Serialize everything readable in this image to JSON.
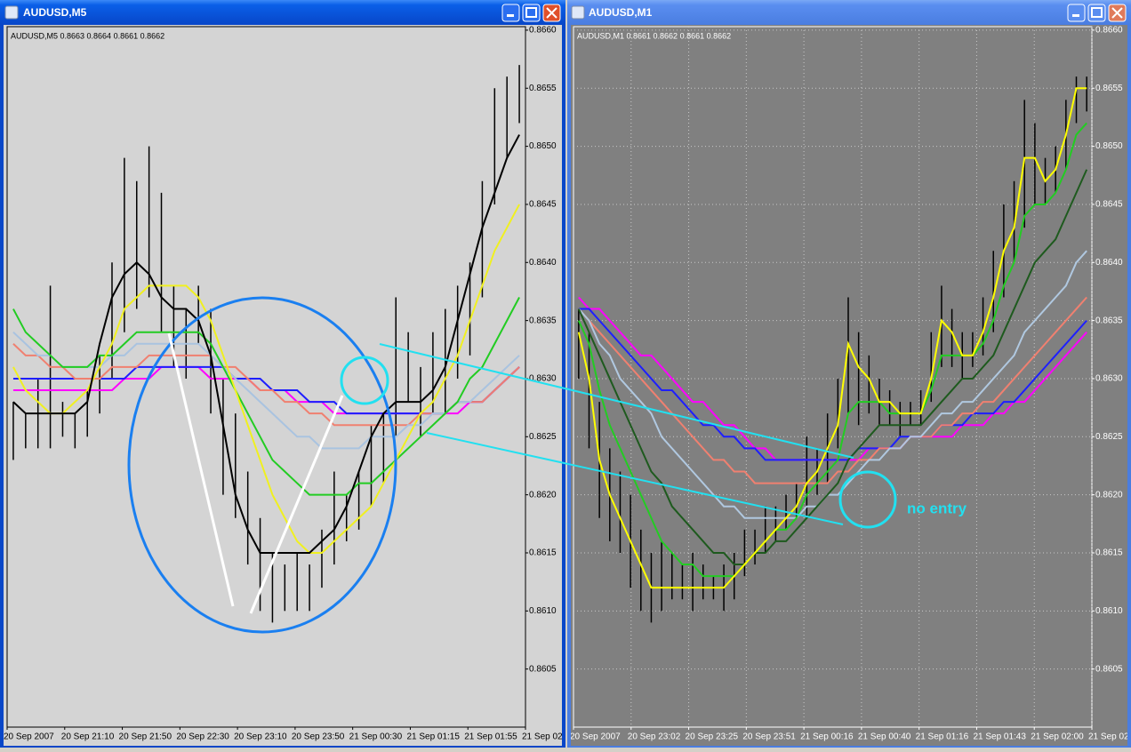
{
  "chart_data": [
    {
      "type": "range",
      "title": "AUDUSD,M5",
      "subtitle": "AUDUSD,M5  0.8663 0.8664 0.8661 0.8662",
      "background": "#d4d4d4",
      "text_color": "#000000",
      "bar_color": "#000000",
      "grid": false,
      "ylim": [
        0.86,
        0.86603
      ],
      "yticks": [
        {
          "value": 0.866,
          "label": "0.8660"
        },
        0.8655,
        {
          "value": 0.865,
          "label": "0.8650"
        },
        0.8645,
        {
          "value": 0.864,
          "label": "0.8640"
        },
        0.8635,
        {
          "value": 0.863,
          "label": "0.8630"
        },
        0.8625,
        {
          "value": 0.862,
          "label": "0.8620"
        },
        0.8615,
        {
          "value": 0.861,
          "label": "0.8610"
        },
        0.8605
      ],
      "time_labels": [
        "20 Sep 2007",
        "20 Sep 21:10",
        "20 Sep 21:50",
        "20 Sep 22:30",
        "20 Sep 23:10",
        "20 Sep 23:50",
        "21 Sep 00:30",
        "21 Sep 01:15",
        "21 Sep 01:55",
        "21 Sep 02:"
      ],
      "high": [
        0.8628,
        0.8627,
        0.863,
        0.8638,
        0.8628,
        0.8627,
        0.8629,
        0.8632,
        0.864,
        0.8649,
        0.8647,
        0.865,
        0.8646,
        0.8638,
        0.8636,
        0.8638,
        0.8636,
        0.863,
        0.8627,
        0.8622,
        0.8618,
        0.8615,
        0.8614,
        0.8615,
        0.8614,
        0.8617,
        0.8622,
        0.862,
        0.8622,
        0.8626,
        0.8627,
        0.8637,
        0.8634,
        0.8631,
        0.8634,
        0.8636,
        0.8638,
        0.864,
        0.8647,
        0.8655,
        0.8656,
        0.8657
      ],
      "low": [
        0.8623,
        0.8624,
        0.8624,
        0.8624,
        0.8625,
        0.8624,
        0.8625,
        0.8627,
        0.863,
        0.8634,
        0.8636,
        0.8637,
        0.8634,
        0.8631,
        0.863,
        0.8633,
        0.8627,
        0.862,
        0.8618,
        0.8614,
        0.861,
        0.8609,
        0.861,
        0.861,
        0.861,
        0.8612,
        0.8614,
        0.8616,
        0.8617,
        0.8619,
        0.8621,
        0.8625,
        0.8628,
        0.8625,
        0.8627,
        0.8627,
        0.863,
        0.8632,
        0.8637,
        0.8645,
        0.8649,
        0.8652
      ],
      "series": [
        {
          "color": "#ff00ff",
          "values": [
            0.8629,
            0.8629,
            0.8629,
            0.8629,
            0.8629,
            0.8629,
            0.8629,
            0.8629,
            0.8629,
            0.863,
            0.863,
            0.863,
            0.8631,
            0.8631,
            0.8631,
            0.8631,
            0.863,
            0.863,
            0.863,
            0.863,
            0.8629,
            0.8629,
            0.8629,
            0.8628,
            0.8628,
            0.8628,
            0.8627,
            0.8627,
            0.8627,
            0.8627,
            0.8627,
            0.8627,
            0.8627,
            0.8627,
            0.8627,
            0.8627,
            0.8627,
            0.8628,
            0.8628,
            0.8629,
            0.863,
            0.8631
          ]
        },
        {
          "color": "#1e1eff",
          "values": [
            0.863,
            0.863,
            0.863,
            0.863,
            0.863,
            0.863,
            0.863,
            0.863,
            0.863,
            0.863,
            0.8631,
            0.8631,
            0.8631,
            0.8631,
            0.8631,
            0.8631,
            0.8631,
            0.8631,
            0.863,
            0.863,
            0.863,
            0.8629,
            0.8629,
            0.8629,
            0.8628,
            0.8628,
            0.8628,
            0.8627,
            0.8627,
            0.8627,
            0.8627,
            0.8627,
            0.8627,
            0.8627,
            0.8627,
            0.8627,
            0.8628,
            0.8628,
            0.8628,
            0.8629,
            0.863,
            0.8631
          ]
        },
        {
          "color": "#f08070",
          "values": [
            0.8633,
            0.8632,
            0.8632,
            0.8631,
            0.8631,
            0.863,
            0.863,
            0.863,
            0.8631,
            0.8631,
            0.8631,
            0.8632,
            0.8632,
            0.8632,
            0.8632,
            0.8632,
            0.8632,
            0.8631,
            0.8631,
            0.863,
            0.8629,
            0.8629,
            0.8628,
            0.8628,
            0.8627,
            0.8627,
            0.8626,
            0.8626,
            0.8626,
            0.8626,
            0.8626,
            0.8626,
            0.8626,
            0.8627,
            0.8627,
            0.8627,
            0.8628,
            0.8628,
            0.8628,
            0.8629,
            0.863,
            0.8631
          ]
        },
        {
          "color": "#a9c3e0",
          "values": [
            0.8634,
            0.8633,
            0.8632,
            0.8632,
            0.8631,
            0.8631,
            0.8631,
            0.8631,
            0.8632,
            0.8632,
            0.8633,
            0.8633,
            0.8633,
            0.8633,
            0.8633,
            0.8633,
            0.8632,
            0.8631,
            0.863,
            0.8629,
            0.8628,
            0.8627,
            0.8626,
            0.8625,
            0.8625,
            0.8624,
            0.8624,
            0.8624,
            0.8624,
            0.8625,
            0.8625,
            0.8625,
            0.8626,
            0.8626,
            0.8627,
            0.8627,
            0.8628,
            0.8628,
            0.8629,
            0.863,
            0.8631,
            0.8632
          ]
        },
        {
          "color": "#22cc22",
          "values": [
            0.8636,
            0.8634,
            0.8633,
            0.8632,
            0.8631,
            0.8631,
            0.8631,
            0.8632,
            0.8632,
            0.8633,
            0.8634,
            0.8634,
            0.8634,
            0.8634,
            0.8634,
            0.8634,
            0.8633,
            0.8631,
            0.8629,
            0.8627,
            0.8625,
            0.8623,
            0.8622,
            0.8621,
            0.862,
            0.862,
            0.862,
            0.862,
            0.8621,
            0.8621,
            0.8622,
            0.8623,
            0.8624,
            0.8625,
            0.8626,
            0.8627,
            0.8628,
            0.863,
            0.8631,
            0.8633,
            0.8635,
            0.8637
          ]
        },
        {
          "color": "#f0f020",
          "values": [
            0.8631,
            0.8629,
            0.8628,
            0.8627,
            0.8627,
            0.8628,
            0.8629,
            0.8631,
            0.8633,
            0.8636,
            0.8637,
            0.8638,
            0.8638,
            0.8638,
            0.8638,
            0.8637,
            0.8635,
            0.8632,
            0.8629,
            0.8626,
            0.8623,
            0.862,
            0.8618,
            0.8616,
            0.8615,
            0.8615,
            0.8616,
            0.8617,
            0.8618,
            0.8619,
            0.8621,
            0.8623,
            0.8625,
            0.8627,
            0.8628,
            0.863,
            0.8632,
            0.8635,
            0.8638,
            0.8641,
            0.8643,
            0.8645
          ]
        },
        {
          "color": "#000000",
          "values": [
            0.8628,
            0.8627,
            0.8627,
            0.8627,
            0.8627,
            0.8627,
            0.8628,
            0.8633,
            0.8637,
            0.8639,
            0.864,
            0.8639,
            0.8637,
            0.8636,
            0.8636,
            0.8635,
            0.8632,
            0.8626,
            0.862,
            0.8617,
            0.8615,
            0.8615,
            0.8615,
            0.8615,
            0.8615,
            0.8616,
            0.8617,
            0.8619,
            0.8622,
            0.8625,
            0.8627,
            0.8628,
            0.8628,
            0.8628,
            0.8629,
            0.8631,
            0.8635,
            0.8639,
            0.8643,
            0.8646,
            0.8649,
            0.8651
          ]
        }
      ]
    },
    {
      "type": "range",
      "title": "AUDUSD,M1",
      "subtitle": "AUDUSD,M1  0.8661 0.8662 0.8661 0.8662",
      "background": "#808080",
      "text_color": "#ffffff",
      "bar_color": "#000000",
      "grid": true,
      "ylim": [
        0.86,
        0.86603
      ],
      "yticks": [
        {
          "value": 0.866,
          "label": "0.8660"
        },
        0.8655,
        {
          "value": 0.865,
          "label": "0.8650"
        },
        0.8645,
        {
          "value": 0.864,
          "label": "0.8640"
        },
        0.8635,
        {
          "value": 0.863,
          "label": "0.8630"
        },
        0.8625,
        {
          "value": 0.862,
          "label": "0.8620"
        },
        0.8615,
        {
          "value": 0.861,
          "label": "0.8610"
        },
        0.8605
      ],
      "time_labels": [
        "20 Sep 2007",
        "20 Sep 23:02",
        "20 Sep 23:25",
        "20 Sep 23:51",
        "21 Sep 00:16",
        "21 Sep 00:40",
        "21 Sep 01:16",
        "21 Sep 01:43",
        "21 Sep 02:00",
        "21 Sep 02:"
      ],
      "annotation": "no entry",
      "high": [
        0.8636,
        0.8634,
        0.8628,
        0.8624,
        0.8622,
        0.862,
        0.8617,
        0.8615,
        0.8616,
        0.8615,
        0.8614,
        0.8615,
        0.8614,
        0.8613,
        0.8614,
        0.8615,
        0.8617,
        0.8617,
        0.8619,
        0.8619,
        0.862,
        0.8621,
        0.8625,
        0.8624,
        0.8627,
        0.863,
        0.8637,
        0.8634,
        0.8632,
        0.863,
        0.8629,
        0.8628,
        0.8628,
        0.8629,
        0.8634,
        0.8638,
        0.8636,
        0.8634,
        0.8634,
        0.8637,
        0.8641,
        0.8645,
        0.8647,
        0.8654,
        0.8652,
        0.8649,
        0.865,
        0.8654,
        0.8656,
        0.8656
      ],
      "low": [
        0.863,
        0.8624,
        0.8618,
        0.8616,
        0.8615,
        0.8612,
        0.861,
        0.8609,
        0.861,
        0.8611,
        0.8611,
        0.861,
        0.8611,
        0.8611,
        0.861,
        0.8611,
        0.8613,
        0.8614,
        0.8615,
        0.8616,
        0.8617,
        0.8618,
        0.8618,
        0.862,
        0.8621,
        0.8624,
        0.8627,
        0.8626,
        0.8627,
        0.8626,
        0.8626,
        0.8625,
        0.8626,
        0.8626,
        0.8628,
        0.8631,
        0.8631,
        0.863,
        0.8631,
        0.8632,
        0.8634,
        0.8637,
        0.864,
        0.8643,
        0.8645,
        0.8645,
        0.8646,
        0.8648,
        0.8652,
        0.8653
      ],
      "series": [
        {
          "color": "#ff00ff",
          "values": [
            0.8637,
            0.8636,
            0.8636,
            0.8635,
            0.8634,
            0.8633,
            0.8632,
            0.8632,
            0.8631,
            0.863,
            0.8629,
            0.8628,
            0.8628,
            0.8627,
            0.8626,
            0.8626,
            0.8625,
            0.8624,
            0.8624,
            0.8623,
            0.8623,
            0.8623,
            0.8623,
            0.8623,
            0.8623,
            0.8623,
            0.8623,
            0.8623,
            0.8624,
            0.8624,
            0.8624,
            0.8624,
            0.8625,
            0.8625,
            0.8625,
            0.8625,
            0.8625,
            0.8626,
            0.8626,
            0.8626,
            0.8627,
            0.8627,
            0.8628,
            0.8628,
            0.8629,
            0.863,
            0.8631,
            0.8632,
            0.8633,
            0.8634
          ]
        },
        {
          "color": "#1e1eff",
          "values": [
            0.8636,
            0.8636,
            0.8635,
            0.8634,
            0.8633,
            0.8632,
            0.8631,
            0.863,
            0.8629,
            0.8629,
            0.8628,
            0.8627,
            0.8626,
            0.8626,
            0.8625,
            0.8625,
            0.8624,
            0.8624,
            0.8623,
            0.8623,
            0.8623,
            0.8623,
            0.8623,
            0.8623,
            0.8623,
            0.8623,
            0.8623,
            0.8624,
            0.8624,
            0.8624,
            0.8624,
            0.8625,
            0.8625,
            0.8625,
            0.8625,
            0.8626,
            0.8626,
            0.8626,
            0.8627,
            0.8627,
            0.8627,
            0.8628,
            0.8628,
            0.8629,
            0.863,
            0.8631,
            0.8632,
            0.8633,
            0.8634,
            0.8635
          ]
        },
        {
          "color": "#f08070",
          "values": [
            0.8636,
            0.8635,
            0.8634,
            0.8633,
            0.8632,
            0.8631,
            0.863,
            0.8629,
            0.8628,
            0.8627,
            0.8626,
            0.8625,
            0.8624,
            0.8623,
            0.8623,
            0.8622,
            0.8622,
            0.8621,
            0.8621,
            0.8621,
            0.8621,
            0.8621,
            0.8621,
            0.8621,
            0.8621,
            0.8622,
            0.8622,
            0.8623,
            0.8623,
            0.8624,
            0.8624,
            0.8624,
            0.8625,
            0.8625,
            0.8625,
            0.8626,
            0.8626,
            0.8627,
            0.8627,
            0.8628,
            0.8628,
            0.8629,
            0.863,
            0.8631,
            0.8632,
            0.8633,
            0.8634,
            0.8635,
            0.8636,
            0.8637
          ]
        },
        {
          "color": "#b0c8e0",
          "values": [
            0.8636,
            0.8635,
            0.8633,
            0.8632,
            0.863,
            0.8629,
            0.8628,
            0.8627,
            0.8625,
            0.8624,
            0.8623,
            0.8622,
            0.8621,
            0.862,
            0.8619,
            0.8619,
            0.8618,
            0.8618,
            0.8618,
            0.8618,
            0.8618,
            0.8618,
            0.8619,
            0.8619,
            0.862,
            0.862,
            0.8621,
            0.8622,
            0.8623,
            0.8623,
            0.8624,
            0.8624,
            0.8625,
            0.8625,
            0.8626,
            0.8627,
            0.8627,
            0.8628,
            0.8628,
            0.8629,
            0.863,
            0.8631,
            0.8632,
            0.8634,
            0.8635,
            0.8636,
            0.8637,
            0.8638,
            0.864,
            0.8641
          ]
        },
        {
          "color": "#1e5a1e",
          "values": [
            0.8636,
            0.8634,
            0.8632,
            0.863,
            0.8628,
            0.8626,
            0.8624,
            0.8622,
            0.8621,
            0.8619,
            0.8618,
            0.8617,
            0.8616,
            0.8615,
            0.8615,
            0.8614,
            0.8614,
            0.8615,
            0.8615,
            0.8616,
            0.8616,
            0.8617,
            0.8618,
            0.8619,
            0.862,
            0.8621,
            0.8623,
            0.8624,
            0.8625,
            0.8626,
            0.8626,
            0.8626,
            0.8626,
            0.8626,
            0.8627,
            0.8628,
            0.8629,
            0.863,
            0.863,
            0.8631,
            0.8632,
            0.8634,
            0.8636,
            0.8638,
            0.864,
            0.8641,
            0.8642,
            0.8644,
            0.8646,
            0.8648
          ]
        },
        {
          "color": "#22cc22",
          "values": [
            0.8635,
            0.8633,
            0.8629,
            0.8626,
            0.8624,
            0.8622,
            0.862,
            0.8618,
            0.8616,
            0.8615,
            0.8614,
            0.8614,
            0.8613,
            0.8613,
            0.8613,
            0.8613,
            0.8614,
            0.8615,
            0.8616,
            0.8617,
            0.8617,
            0.8618,
            0.862,
            0.8621,
            0.8622,
            0.8623,
            0.8627,
            0.8628,
            0.8628,
            0.8628,
            0.8627,
            0.8627,
            0.8627,
            0.8627,
            0.8629,
            0.8632,
            0.8632,
            0.8632,
            0.8632,
            0.8633,
            0.8635,
            0.8638,
            0.864,
            0.8644,
            0.8645,
            0.8645,
            0.8646,
            0.8648,
            0.8651,
            0.8652
          ]
        },
        {
          "color": "#ffff00",
          "values": [
            0.8634,
            0.863,
            0.8623,
            0.862,
            0.8618,
            0.8616,
            0.8614,
            0.8612,
            0.8612,
            0.8612,
            0.8612,
            0.8612,
            0.8612,
            0.8612,
            0.8612,
            0.8613,
            0.8614,
            0.8615,
            0.8616,
            0.8617,
            0.8618,
            0.8619,
            0.8621,
            0.8622,
            0.8624,
            0.8626,
            0.8633,
            0.8631,
            0.863,
            0.8628,
            0.8628,
            0.8627,
            0.8627,
            0.8627,
            0.863,
            0.8635,
            0.8634,
            0.8632,
            0.8632,
            0.8634,
            0.8637,
            0.8641,
            0.8643,
            0.8649,
            0.8649,
            0.8647,
            0.8648,
            0.8651,
            0.8655,
            0.8655
          ]
        }
      ]
    }
  ]
}
